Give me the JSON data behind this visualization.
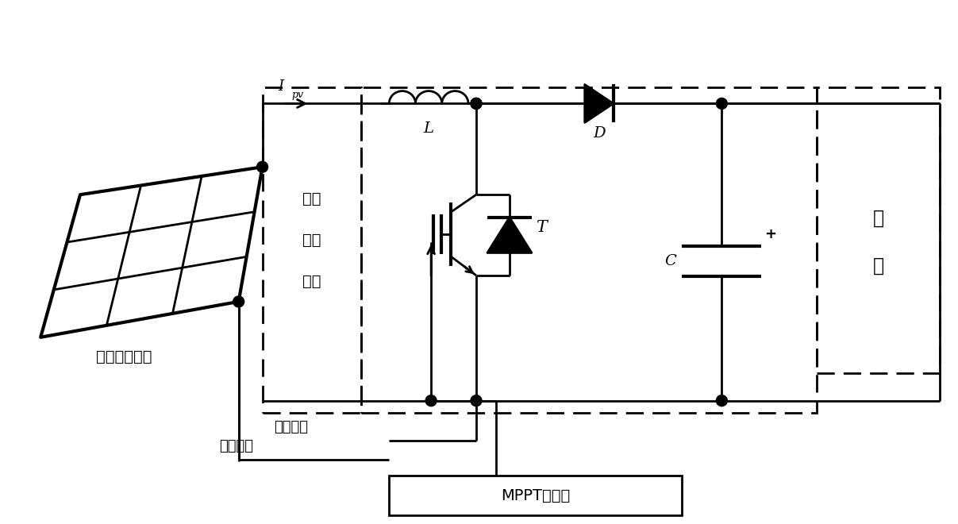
{
  "bg_color": "#ffffff",
  "line_color": "#000000",
  "text_solar": "太阳能电池板",
  "text_dc_port_lines": [
    "直流",
    "输入",
    "端口"
  ],
  "text_load_lines": [
    "负",
    "载"
  ],
  "text_L": "L",
  "text_D": "D",
  "text_T": "T",
  "text_C": "C",
  "text_Ipv_main": "I",
  "text_Ipv_sub": "pv",
  "text_current_sample": "电流采样",
  "text_voltage_sample": "电压采样",
  "text_mppt": "MPPT控制器",
  "text_plus": "+",
  "figsize": [
    12.07,
    6.6
  ],
  "dpi": 100
}
